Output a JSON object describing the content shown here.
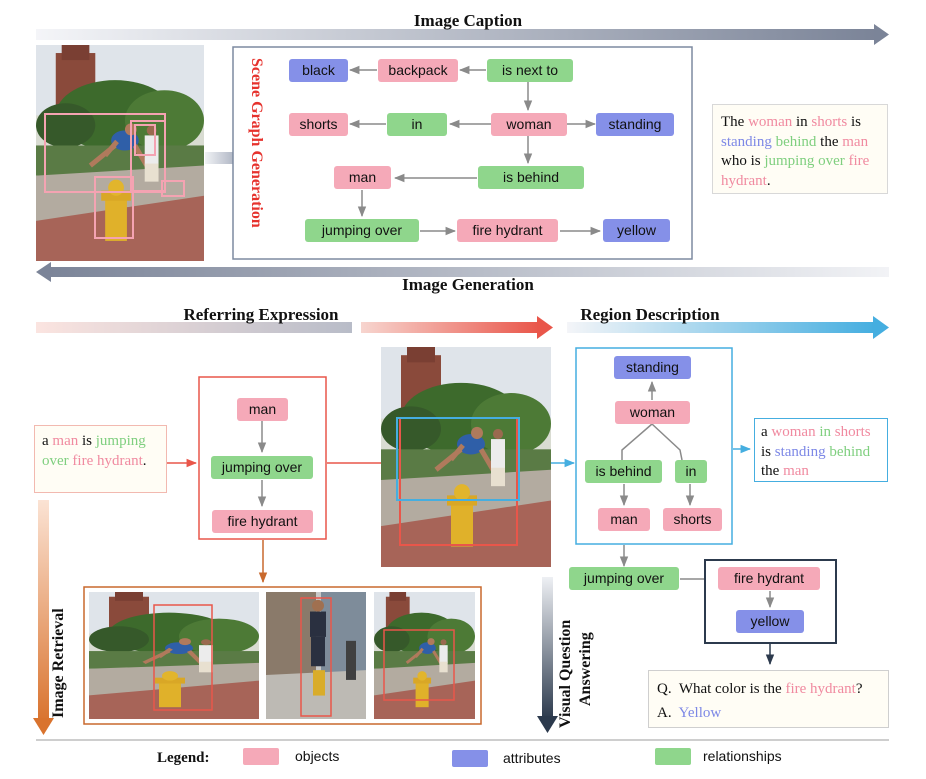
{
  "titles": {
    "image_caption": "Image Caption",
    "image_generation": "Image Generation",
    "referring_expression": "Referring Expression",
    "region_description": "Region Description",
    "scene_graph_generation": "Scene Graph Generation",
    "image_retrieval": "Image Retrieval",
    "vqa_line1": "Visual Question",
    "vqa_line2": "Answering"
  },
  "colors": {
    "object": "#f5a9b8",
    "attribute": "#8590e8",
    "relationship": "#8fd68c",
    "object_text": "#f08aa0",
    "attribute_text": "#7d88e6",
    "relationship_text": "#7fcf7f",
    "referring_red": "#e9564a",
    "region_blue": "#45aee0",
    "dark": "#2c3a4d"
  },
  "scene_graph": {
    "black": "black",
    "backpack": "backpack",
    "is_next_to": "is next to",
    "shorts": "shorts",
    "in": "in",
    "woman": "woman",
    "standing": "standing",
    "man": "man",
    "is_behind": "is behind",
    "jumping_over": "jumping over",
    "fire_hydrant": "fire hydrant",
    "yellow": "yellow"
  },
  "caption": {
    "segments": [
      {
        "text": "The ",
        "kind": "plain"
      },
      {
        "text": "woman",
        "kind": "object"
      },
      {
        "text": " in ",
        "kind": "plain"
      },
      {
        "text": "shorts",
        "kind": "object"
      },
      {
        "text": " is ",
        "kind": "plain"
      },
      {
        "text": "standing",
        "kind": "attribute"
      },
      {
        "text": " ",
        "kind": "plain"
      },
      {
        "text": "behind",
        "kind": "relationship"
      },
      {
        "text": " the ",
        "kind": "plain"
      },
      {
        "text": "man",
        "kind": "object"
      },
      {
        "text": " who is ",
        "kind": "plain"
      },
      {
        "text": "jumping over",
        "kind": "relationship"
      },
      {
        "text": " ",
        "kind": "plain"
      },
      {
        "text": "fire hydrant",
        "kind": "object"
      },
      {
        "text": ".",
        "kind": "plain"
      }
    ]
  },
  "referring": {
    "text_segments": [
      {
        "text": "a ",
        "kind": "plain"
      },
      {
        "text": "man",
        "kind": "object"
      },
      {
        "text": " is ",
        "kind": "plain"
      },
      {
        "text": "jumping over",
        "kind": "relationship"
      },
      {
        "text": " ",
        "kind": "plain"
      },
      {
        "text": "fire hydrant",
        "kind": "object"
      },
      {
        "text": ".",
        "kind": "plain"
      }
    ],
    "man": "man",
    "jumping_over": "jumping over",
    "fire_hydrant": "fire hydrant"
  },
  "region": {
    "standing": "standing",
    "woman": "woman",
    "is_behind": "is behind",
    "in": "in",
    "man": "man",
    "shorts": "shorts",
    "text_segments": [
      {
        "text": "a ",
        "kind": "plain"
      },
      {
        "text": "woman",
        "kind": "object"
      },
      {
        "text": " in ",
        "kind": "relationship"
      },
      {
        "text": "shorts",
        "kind": "object"
      },
      {
        "text": " is ",
        "kind": "plain"
      },
      {
        "text": "standing",
        "kind": "attribute"
      },
      {
        "text": " ",
        "kind": "plain"
      },
      {
        "text": "behind",
        "kind": "relationship"
      },
      {
        "text": " the ",
        "kind": "plain"
      },
      {
        "text": "man",
        "kind": "object"
      }
    ]
  },
  "vqa": {
    "jumping_over": "jumping over",
    "fire_hydrant": "fire hydrant",
    "yellow": "yellow",
    "q_prefix": "Q.",
    "q_text": "What color is the ",
    "q_object": "fire hydrant",
    "q_end": "?",
    "a_prefix": "A.",
    "a_text": "Yellow"
  },
  "legend": {
    "title": "Legend:",
    "objects": "objects",
    "attributes": "attributes",
    "relationships": "relationships"
  }
}
